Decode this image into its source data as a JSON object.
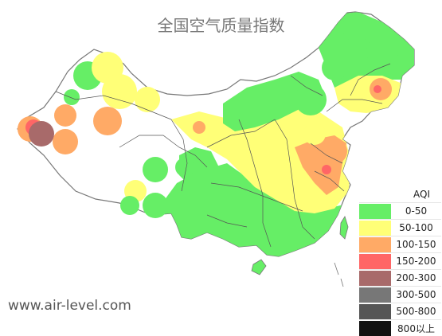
{
  "title": "全国空气质量指数",
  "watermark": "www.air-level.com",
  "legend": {
    "title": "AQI",
    "items": [
      {
        "label": "0-50",
        "color": "#66ee66"
      },
      {
        "label": "50-100",
        "color": "#ffff77"
      },
      {
        "label": "100-150",
        "color": "#ffaa66"
      },
      {
        "label": "150-200",
        "color": "#ff6666"
      },
      {
        "label": "200-300",
        "color": "#a86a6a"
      },
      {
        "label": "300-500",
        "color": "#777777"
      },
      {
        "label": "500-800",
        "color": "#555555"
      },
      {
        "label": "800以上",
        "color": "#111111"
      }
    ]
  }
}
